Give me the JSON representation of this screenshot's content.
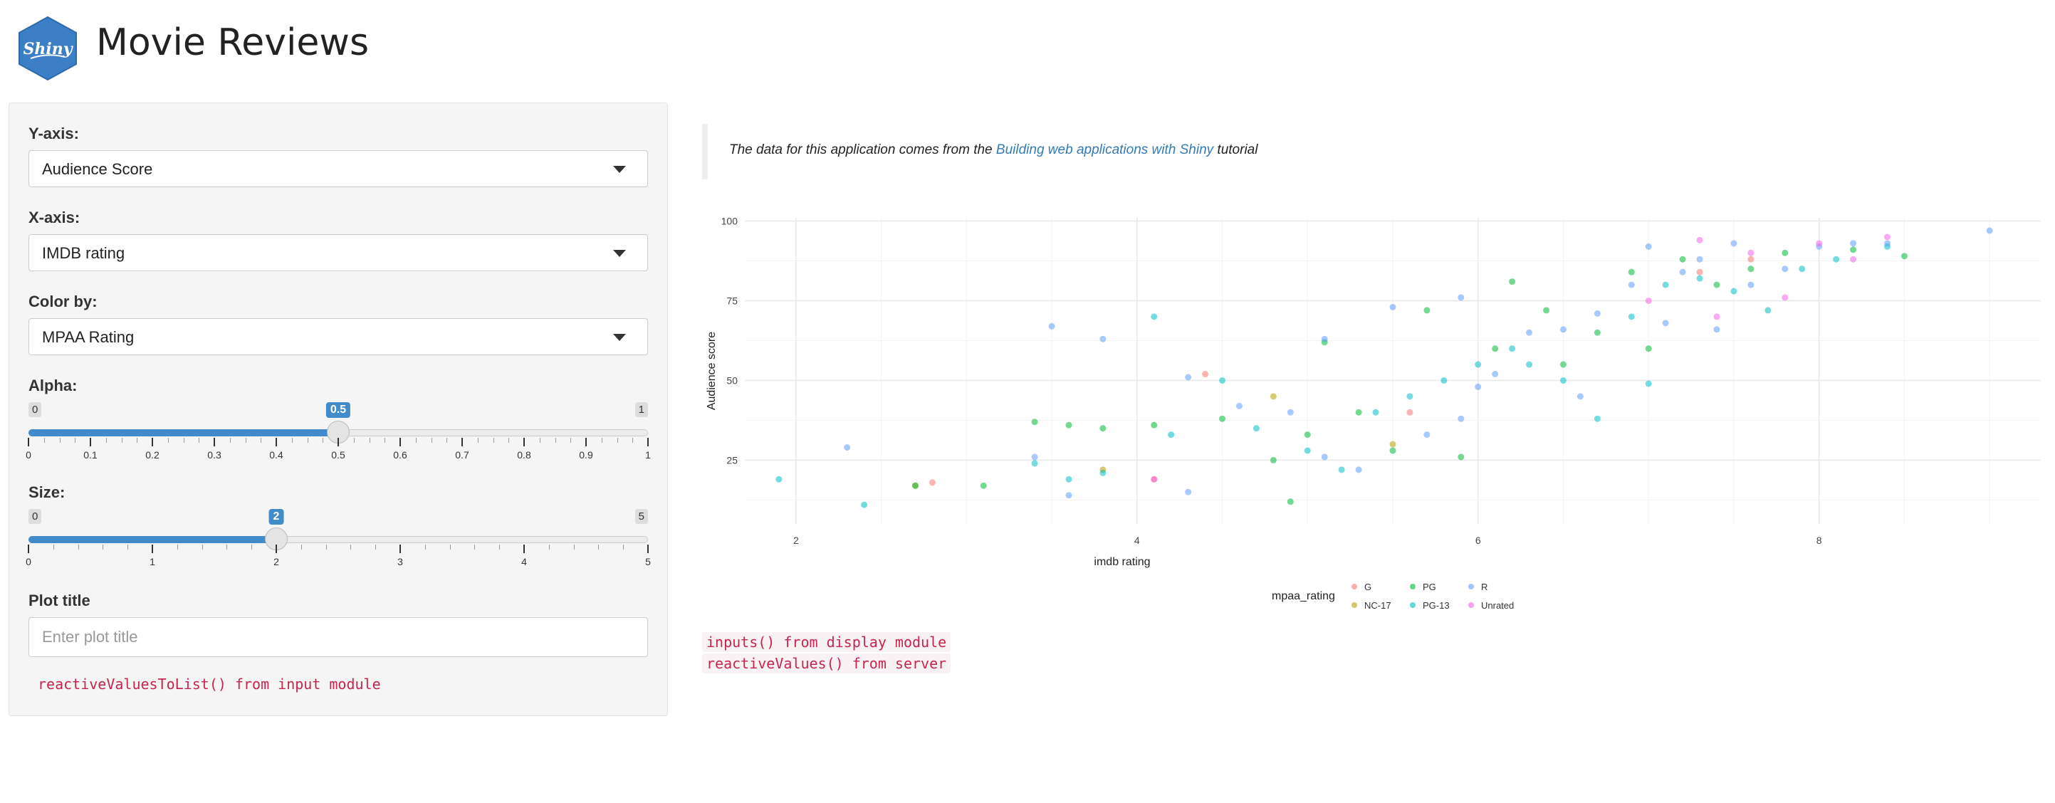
{
  "app": {
    "title": "Movie Reviews",
    "logo_text": "Shiny"
  },
  "sidebar": {
    "y_axis": {
      "label": "Y-axis:",
      "value": "Audience Score"
    },
    "x_axis": {
      "label": "X-axis:",
      "value": "IMDB rating"
    },
    "color_by": {
      "label": "Color by:",
      "value": "MPAA Rating"
    },
    "alpha": {
      "label": "Alpha:",
      "min": "0",
      "max": "1",
      "value": "0.5",
      "value_fraction": 0.5,
      "ticks": [
        "0",
        "0.1",
        "0.2",
        "0.3",
        "0.4",
        "0.5",
        "0.6",
        "0.7",
        "0.8",
        "0.9",
        "1"
      ]
    },
    "size": {
      "label": "Size:",
      "min": "0",
      "max": "5",
      "value": "2",
      "value_fraction": 0.4,
      "ticks": [
        "0",
        "1",
        "2",
        "3",
        "4",
        "5"
      ]
    },
    "plot_title": {
      "label": "Plot title",
      "placeholder": "Enter plot title",
      "value": ""
    },
    "debug": "reactiveValuesToList() from input module"
  },
  "main": {
    "note_prefix": "The data for this application comes from the ",
    "note_link": "Building web applications with Shiny",
    "note_suffix": " tutorial",
    "debug_lines": [
      "inputs() from display module",
      "reactiveValues() from server"
    ]
  },
  "chart_data": {
    "type": "scatter",
    "title": "",
    "xlabel": "imdb rating",
    "ylabel": "Audience score",
    "xlim": [
      1.7,
      9.3
    ],
    "ylim": [
      5,
      101
    ],
    "x_ticks": [
      2,
      4,
      6,
      8
    ],
    "y_ticks": [
      25,
      50,
      75,
      100
    ],
    "grid": true,
    "legend_title": "mpaa_rating",
    "legend_position": "bottom",
    "series": [
      {
        "name": "G",
        "color": "#F8766D",
        "x": [
          2.8,
          4.4,
          5.6,
          4.1,
          7.6,
          7.3
        ],
        "y": [
          18,
          52,
          40,
          19,
          88,
          84
        ]
      },
      {
        "name": "NC-17",
        "color": "#B79F00",
        "x": [
          2.7,
          3.8,
          4.8,
          5.5
        ],
        "y": [
          17,
          22,
          45,
          30
        ]
      },
      {
        "name": "PG",
        "color": "#00BA38",
        "x": [
          2.7,
          3.1,
          3.4,
          3.6,
          3.8,
          4.1,
          4.5,
          4.8,
          4.9,
          5.0,
          5.1,
          5.3,
          5.5,
          5.7,
          5.9,
          6.1,
          6.2,
          6.4,
          6.5,
          6.7,
          6.9,
          7.0,
          7.2,
          7.4,
          7.6,
          7.8,
          8.2,
          8.5
        ],
        "y": [
          17,
          17,
          37,
          36,
          35,
          36,
          38,
          25,
          12,
          33,
          62,
          40,
          28,
          72,
          26,
          60,
          81,
          72,
          55,
          65,
          84,
          60,
          88,
          80,
          85,
          90,
          91,
          89
        ]
      },
      {
        "name": "PG-13",
        "color": "#00BFC4",
        "x": [
          1.9,
          2.4,
          3.4,
          3.6,
          3.8,
          4.1,
          4.2,
          4.5,
          4.7,
          5.0,
          5.2,
          5.4,
          5.6,
          5.8,
          6.0,
          6.2,
          6.3,
          6.5,
          6.7,
          6.9,
          7.0,
          7.1,
          7.3,
          7.5,
          7.7,
          7.9,
          8.1,
          8.4
        ],
        "y": [
          19,
          11,
          24,
          19,
          21,
          70,
          33,
          50,
          35,
          28,
          22,
          40,
          45,
          50,
          55,
          60,
          55,
          50,
          38,
          70,
          49,
          80,
          82,
          78,
          72,
          85,
          88,
          92
        ]
      },
      {
        "name": "R",
        "color": "#619CFF",
        "x": [
          2.3,
          3.4,
          3.5,
          3.6,
          3.8,
          4.3,
          4.6,
          4.9,
          5.1,
          5.3,
          5.5,
          5.7,
          5.9,
          6.0,
          6.1,
          6.3,
          6.5,
          6.7,
          6.9,
          7.0,
          7.2,
          7.3,
          7.5,
          7.6,
          7.8,
          8.0,
          8.2,
          8.4,
          9.0,
          4.3,
          5.1,
          5.9,
          6.6,
          7.1,
          7.4
        ],
        "y": [
          29,
          26,
          67,
          14,
          63,
          15,
          42,
          40,
          63,
          22,
          73,
          33,
          76,
          48,
          52,
          65,
          66,
          71,
          80,
          92,
          84,
          88,
          93,
          80,
          85,
          92,
          93,
          93,
          97,
          51,
          26,
          38,
          45,
          68,
          66
        ]
      },
      {
        "name": "Unrated",
        "color": "#F564E3",
        "x": [
          4.1,
          7.0,
          7.3,
          7.4,
          7.6,
          7.8,
          8.0,
          8.2,
          8.4
        ],
        "y": [
          19,
          75,
          94,
          70,
          90,
          76,
          93,
          88,
          95
        ]
      }
    ]
  }
}
